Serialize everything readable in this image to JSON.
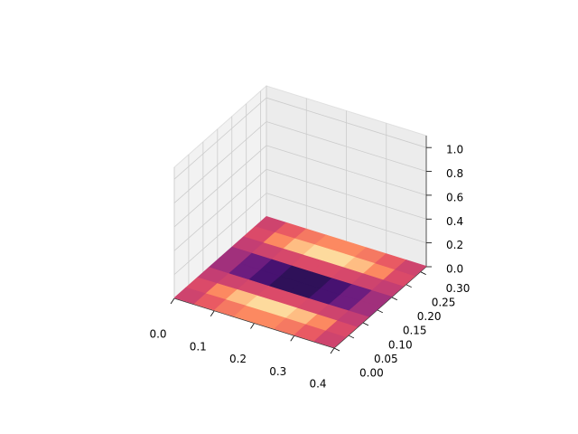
{
  "chart_data": {
    "type": "surface3d",
    "colormap": "magma",
    "x": [
      0,
      0.05,
      0.1,
      0.15,
      0.2,
      0.25,
      0.3,
      0.35,
      0.4
    ],
    "y": [
      0,
      0.04,
      0.08,
      0.12,
      0.16,
      0.2,
      0.24,
      0.28,
      0.32
    ],
    "z": [
      [
        0.005,
        0.005,
        0.005,
        0.005,
        0.005,
        0.005,
        0.005,
        0.005,
        0.005
      ],
      [
        0.005,
        0.00677,
        0.00827,
        0.00927,
        0.00962,
        0.00927,
        0.00827,
        0.00677,
        0.005
      ],
      [
        0.005,
        0.00635,
        0.0075,
        0.00827,
        0.00854,
        0.00827,
        0.0075,
        0.00635,
        0.005
      ],
      [
        0.005,
        0.00427,
        0.00365,
        0.00323,
        0.00309,
        0.00323,
        0.00365,
        0.00427,
        0.005
      ],
      [
        0.005,
        0.00309,
        0.00146,
        0.00038,
        0,
        0.00038,
        0.00146,
        0.00309,
        0.005
      ],
      [
        0.005,
        0.00427,
        0.00365,
        0.00323,
        0.00309,
        0.00323,
        0.00365,
        0.00427,
        0.005
      ],
      [
        0.005,
        0.00635,
        0.0075,
        0.00827,
        0.00854,
        0.00827,
        0.0075,
        0.00635,
        0.005
      ],
      [
        0.005,
        0.00677,
        0.00827,
        0.00927,
        0.00962,
        0.00927,
        0.00827,
        0.00677,
        0.005
      ],
      [
        0.005,
        0.005,
        0.005,
        0.005,
        0.005,
        0.005,
        0.005,
        0.005,
        0.005
      ]
    ],
    "xlim": [
      0,
      0.4
    ],
    "ylim": [
      0,
      0.32
    ],
    "zlim": [
      0,
      1.1
    ],
    "xticks": [
      {
        "value": 0,
        "label": "0.0"
      },
      0.1,
      0.2,
      0.3,
      0.4
    ],
    "yticks": [
      {
        "value": 0,
        "label": "0.00"
      },
      0.05,
      {
        "value": 0.1,
        "label": "0.10"
      },
      0.15,
      {
        "value": 0.2,
        "label": "0.20"
      },
      0.25,
      {
        "value": 0.3,
        "label": "0.30"
      }
    ],
    "zticks": [
      {
        "value": 0,
        "label": "0.0"
      },
      0.2,
      0.4,
      0.6,
      0.8,
      {
        "value": 1,
        "label": "1.0"
      }
    ],
    "grid": true
  }
}
